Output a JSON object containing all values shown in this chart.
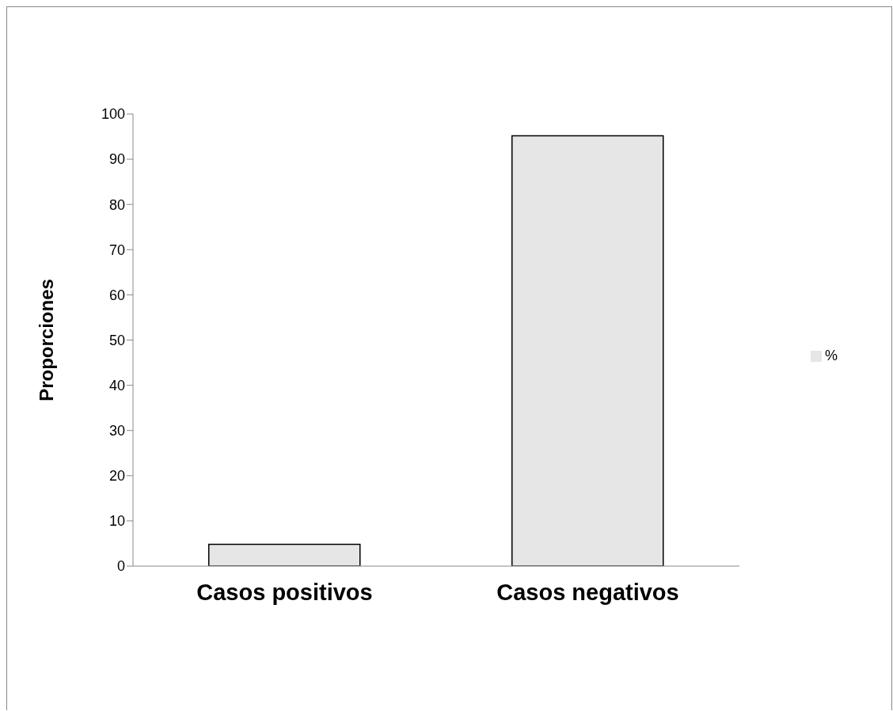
{
  "chart_data": {
    "type": "bar",
    "ylabel": "Proporciones",
    "categories": [
      "Casos positivos",
      "Casos negativos"
    ],
    "series": [
      {
        "name": "%",
        "color": "#e6e6e6",
        "values": [
          4.8,
          95.2
        ]
      }
    ],
    "ylim": [
      0,
      100
    ],
    "yticks": [
      0,
      10,
      20,
      30,
      40,
      50,
      60,
      70,
      80,
      90,
      100
    ],
    "legend": "right"
  }
}
